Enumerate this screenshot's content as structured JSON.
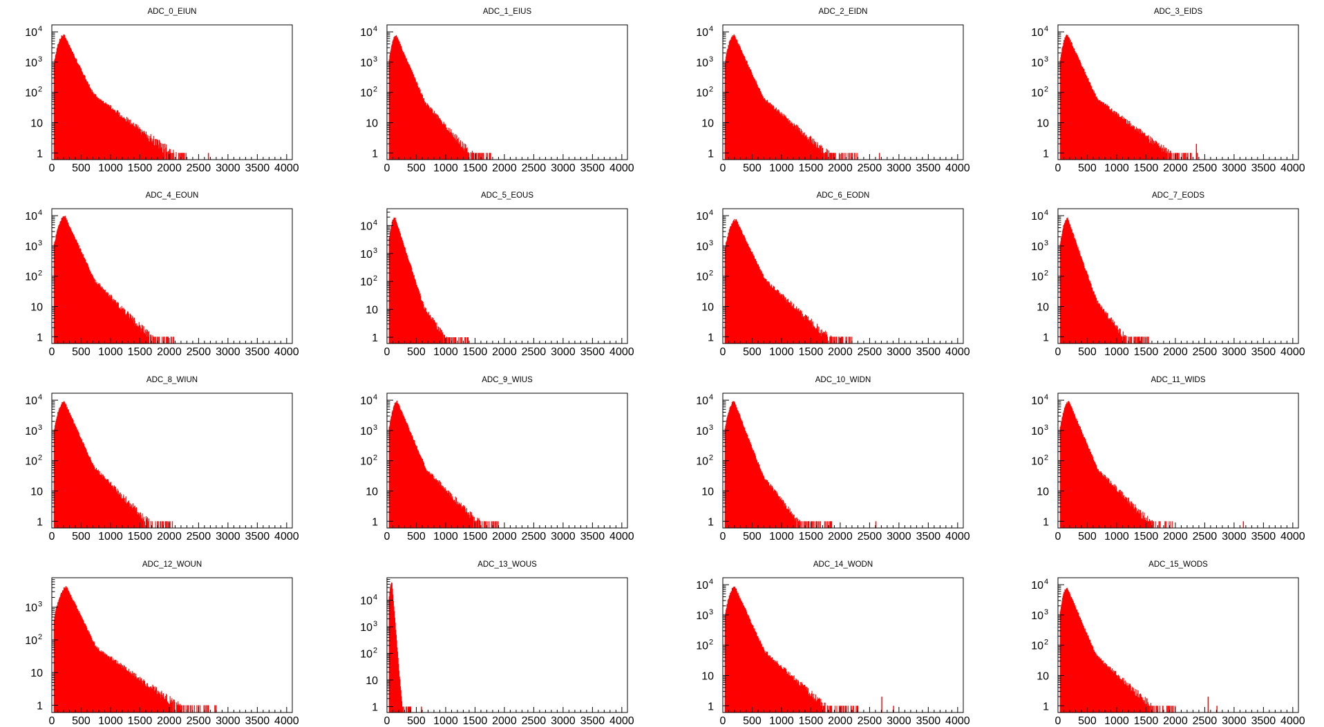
{
  "colors": {
    "bars": "#ff0000",
    "axes": "#000000",
    "background": "#ffffff"
  },
  "chart_data": [
    {
      "type": "bar",
      "title": "ADC_0_EIUN",
      "xlim": [
        0,
        4096
      ],
      "xticks": [
        0,
        500,
        1000,
        1500,
        2000,
        2500,
        3000,
        3500,
        4000
      ],
      "yscale": "log",
      "ylim": [
        0.6,
        17000
      ],
      "peak": {
        "x": 200,
        "y": 8000
      },
      "extent": 2300,
      "slope": 0.0039,
      "tail": 0.0015,
      "outliers": [
        {
          "x": 2660,
          "y": 1
        }
      ]
    },
    {
      "type": "bar",
      "title": "ADC_1_EIUS",
      "xlim": [
        0,
        4096
      ],
      "xticks": [
        0,
        500,
        1000,
        1500,
        2000,
        2500,
        3000,
        3500,
        4000
      ],
      "yscale": "log",
      "ylim": [
        0.6,
        17000
      ],
      "peak": {
        "x": 150,
        "y": 8000
      },
      "extent": 1800,
      "slope": 0.0045,
      "tail": 0.0022,
      "outliers": []
    },
    {
      "type": "bar",
      "title": "ADC_2_EIDN",
      "xlim": [
        0,
        4096
      ],
      "xticks": [
        0,
        500,
        1000,
        1500,
        2000,
        2500,
        3000,
        3500,
        4000
      ],
      "yscale": "log",
      "ylim": [
        0.6,
        17000
      ],
      "peak": {
        "x": 190,
        "y": 8000
      },
      "extent": 2300,
      "slope": 0.0042,
      "tail": 0.0017,
      "outliers": [
        {
          "x": 2660,
          "y": 1
        }
      ]
    },
    {
      "type": "bar",
      "title": "ADC_3_EIDS",
      "xlim": [
        0,
        4096
      ],
      "xticks": [
        0,
        500,
        1000,
        1500,
        2000,
        2500,
        3000,
        3500,
        4000
      ],
      "yscale": "log",
      "ylim": [
        0.6,
        17000
      ],
      "peak": {
        "x": 160,
        "y": 8000
      },
      "extent": 2400,
      "slope": 0.0042,
      "tail": 0.0015,
      "outliers": [
        {
          "x": 2350,
          "y": 2
        }
      ]
    },
    {
      "type": "bar",
      "title": "ADC_4_EOUN",
      "xlim": [
        0,
        4096
      ],
      "xticks": [
        0,
        500,
        1000,
        1500,
        2000,
        2500,
        3000,
        3500,
        4000
      ],
      "yscale": "log",
      "ylim": [
        0.6,
        17000
      ],
      "peak": {
        "x": 220,
        "y": 9500
      },
      "extent": 2100,
      "slope": 0.0042,
      "tail": 0.002,
      "outliers": []
    },
    {
      "type": "bar",
      "title": "ADC_5_EOUS",
      "xlim": [
        0,
        4096
      ],
      "xticks": [
        0,
        500,
        1000,
        1500,
        2000,
        2500,
        3000,
        3500,
        4000
      ],
      "yscale": "log",
      "ylim": [
        0.6,
        40000
      ],
      "peak": {
        "x": 130,
        "y": 20000
      },
      "extent": 1400,
      "slope": 0.0065,
      "tail": 0.003,
      "outliers": []
    },
    {
      "type": "bar",
      "title": "ADC_6_EODN",
      "xlim": [
        0,
        4096
      ],
      "xticks": [
        0,
        500,
        1000,
        1500,
        2000,
        2500,
        3000,
        3500,
        4000
      ],
      "yscale": "log",
      "ylim": [
        0.6,
        17000
      ],
      "peak": {
        "x": 220,
        "y": 7500
      },
      "extent": 2200,
      "slope": 0.004,
      "tail": 0.0018,
      "outliers": []
    },
    {
      "type": "bar",
      "title": "ADC_7_EODS",
      "xlim": [
        0,
        4096
      ],
      "xticks": [
        0,
        500,
        1000,
        1500,
        2000,
        2500,
        3000,
        3500,
        4000
      ],
      "yscale": "log",
      "ylim": [
        0.6,
        17000
      ],
      "peak": {
        "x": 160,
        "y": 8000
      },
      "extent": 1550,
      "slope": 0.0055,
      "tail": 0.0025,
      "outliers": []
    },
    {
      "type": "bar",
      "title": "ADC_8_WIUN",
      "xlim": [
        0,
        4096
      ],
      "xticks": [
        0,
        500,
        1000,
        1500,
        2000,
        2500,
        3000,
        3500,
        4000
      ],
      "yscale": "log",
      "ylim": [
        0.6,
        17000
      ],
      "peak": {
        "x": 210,
        "y": 9000
      },
      "extent": 2050,
      "slope": 0.0043,
      "tail": 0.002,
      "outliers": []
    },
    {
      "type": "bar",
      "title": "ADC_9_WIUS",
      "xlim": [
        0,
        4096
      ],
      "xticks": [
        0,
        500,
        1000,
        1500,
        2000,
        2500,
        3000,
        3500,
        4000
      ],
      "yscale": "log",
      "ylim": [
        0.6,
        17000
      ],
      "peak": {
        "x": 170,
        "y": 9000
      },
      "extent": 1900,
      "slope": 0.0045,
      "tail": 0.002,
      "outliers": []
    },
    {
      "type": "bar",
      "title": "ADC_10_WIDN",
      "xlim": [
        0,
        4096
      ],
      "xticks": [
        0,
        500,
        1000,
        1500,
        2000,
        2500,
        3000,
        3500,
        4000
      ],
      "yscale": "log",
      "ylim": [
        0.6,
        17000
      ],
      "peak": {
        "x": 190,
        "y": 9000
      },
      "extent": 1850,
      "slope": 0.005,
      "tail": 0.0025,
      "outliers": [
        {
          "x": 2600,
          "y": 1
        }
      ]
    },
    {
      "type": "bar",
      "title": "ADC_11_WIDS",
      "xlim": [
        0,
        4096
      ],
      "xticks": [
        0,
        500,
        1000,
        1500,
        2000,
        2500,
        3000,
        3500,
        4000
      ],
      "yscale": "log",
      "ylim": [
        0.6,
        17000
      ],
      "peak": {
        "x": 180,
        "y": 9000
      },
      "extent": 1950,
      "slope": 0.0045,
      "tail": 0.002,
      "outliers": [
        {
          "x": 3150,
          "y": 1
        }
      ]
    },
    {
      "type": "bar",
      "title": "ADC_12_WOUN",
      "xlim": [
        0,
        4096
      ],
      "xticks": [
        0,
        500,
        1000,
        1500,
        2000,
        2500,
        3000,
        3500,
        4000
      ],
      "yscale": "log",
      "ylim": [
        0.6,
        8000
      ],
      "peak": {
        "x": 250,
        "y": 4200
      },
      "extent": 2800,
      "slope": 0.0037,
      "tail": 0.0013,
      "outliers": []
    },
    {
      "type": "bar",
      "title": "ADC_13_WOUS",
      "xlim": [
        0,
        4096
      ],
      "xticks": [
        0,
        500,
        1000,
        1500,
        2000,
        2500,
        3000,
        3500,
        4000
      ],
      "yscale": "log",
      "ylim": [
        0.6,
        70000
      ],
      "peak": {
        "x": 80,
        "y": 45000
      },
      "extent": 420,
      "slope": 0.027,
      "tail": 0.012,
      "outliers": [
        {
          "x": 580,
          "y": 1
        }
      ]
    },
    {
      "type": "bar",
      "title": "ADC_14_WODN",
      "xlim": [
        0,
        4096
      ],
      "xticks": [
        0,
        500,
        1000,
        1500,
        2000,
        2500,
        3000,
        3500,
        4000
      ],
      "yscale": "log",
      "ylim": [
        0.6,
        17000
      ],
      "peak": {
        "x": 200,
        "y": 8500
      },
      "extent": 2300,
      "slope": 0.0042,
      "tail": 0.0018,
      "outliers": [
        {
          "x": 2700,
          "y": 2
        },
        {
          "x": 2900,
          "y": 1
        }
      ]
    },
    {
      "type": "bar",
      "title": "ADC_15_WODS",
      "xlim": [
        0,
        4096
      ],
      "xticks": [
        0,
        500,
        1000,
        1500,
        2000,
        2500,
        3000,
        3500,
        4000
      ],
      "yscale": "log",
      "ylim": [
        0.6,
        17000
      ],
      "peak": {
        "x": 150,
        "y": 8000
      },
      "extent": 2000,
      "slope": 0.0045,
      "tail": 0.0018,
      "outliers": [
        {
          "x": 2550,
          "y": 2
        },
        {
          "x": 2700,
          "y": 1
        }
      ]
    }
  ]
}
